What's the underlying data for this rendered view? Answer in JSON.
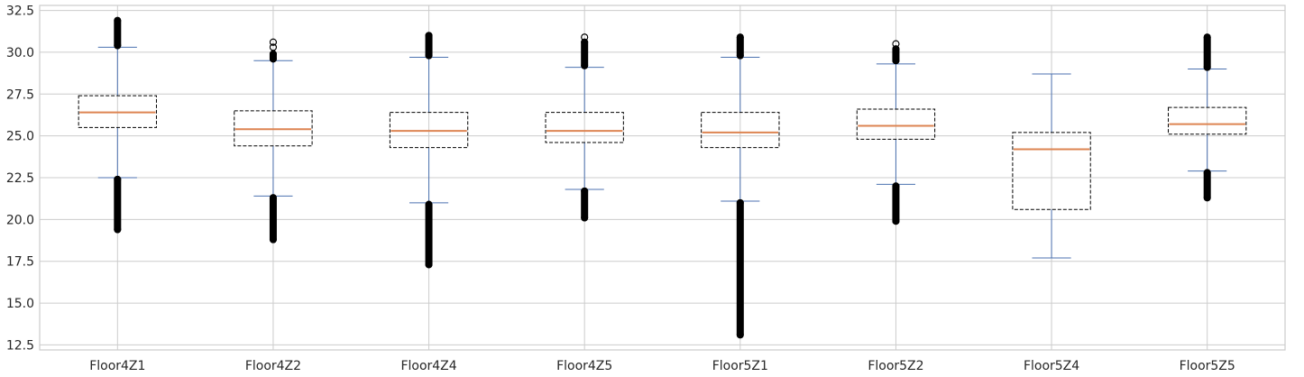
{
  "chart_data": {
    "type": "box",
    "categories": [
      "Floor4Z1",
      "Floor4Z2",
      "Floor4Z4",
      "Floor4Z5",
      "Floor5Z1",
      "Floor5Z2",
      "Floor5Z4",
      "Floor5Z5"
    ],
    "boxes": [
      {
        "whisker_low": 22.5,
        "q1": 25.5,
        "median": 26.4,
        "q3": 27.4,
        "whisker_high": 30.3,
        "outliers_low": [
          19.4,
          22.4
        ],
        "outliers_high": [
          30.4,
          31.9
        ]
      },
      {
        "whisker_low": 21.4,
        "q1": 24.4,
        "median": 25.4,
        "q3": 26.5,
        "whisker_high": 29.5,
        "outliers_low": [
          18.8,
          21.3
        ],
        "outliers_high": [
          29.6,
          29.9,
          30.3,
          30.6
        ]
      },
      {
        "whisker_low": 21.0,
        "q1": 24.3,
        "median": 25.3,
        "q3": 26.4,
        "whisker_high": 29.7,
        "outliers_low": [
          17.3,
          20.9
        ],
        "outliers_high": [
          29.8,
          31.0
        ]
      },
      {
        "whisker_low": 21.8,
        "q1": 24.6,
        "median": 25.3,
        "q3": 26.4,
        "whisker_high": 29.1,
        "outliers_low": [
          20.1,
          21.7
        ],
        "outliers_high": [
          29.2,
          30.6,
          30.9
        ]
      },
      {
        "whisker_low": 21.1,
        "q1": 24.3,
        "median": 25.2,
        "q3": 26.4,
        "whisker_high": 29.7,
        "outliers_low": [
          13.1,
          21.0
        ],
        "outliers_high": [
          29.8,
          30.9
        ]
      },
      {
        "whisker_low": 22.1,
        "q1": 24.8,
        "median": 25.6,
        "q3": 26.6,
        "whisker_high": 29.3,
        "outliers_low": [
          19.9,
          22.0
        ],
        "outliers_high": [
          29.5,
          30.2,
          30.5
        ]
      },
      {
        "whisker_low": 17.7,
        "q1": 20.6,
        "median": 24.2,
        "q3": 25.2,
        "whisker_high": 28.7,
        "outliers_low": [],
        "outliers_high": []
      },
      {
        "whisker_low": 22.9,
        "q1": 25.1,
        "median": 25.7,
        "q3": 26.7,
        "whisker_high": 29.0,
        "outliers_low": [
          21.3,
          22.8
        ],
        "outliers_high": [
          29.1,
          30.9
        ]
      }
    ],
    "yticks": [
      "12.5",
      "15.0",
      "17.5",
      "20.0",
      "22.5",
      "25.0",
      "27.5",
      "30.0",
      "32.5"
    ],
    "ylim": [
      12.2,
      32.8
    ],
    "title": "",
    "xlabel": "",
    "ylabel": "",
    "grid": true,
    "colors": {
      "box_edge": "#000000",
      "median": "#dd8452",
      "whisker": "#4c72b0",
      "outlier": "#000000",
      "grid": "#cccccc",
      "axes_edge": "#cccccc",
      "text": "#262626"
    }
  }
}
